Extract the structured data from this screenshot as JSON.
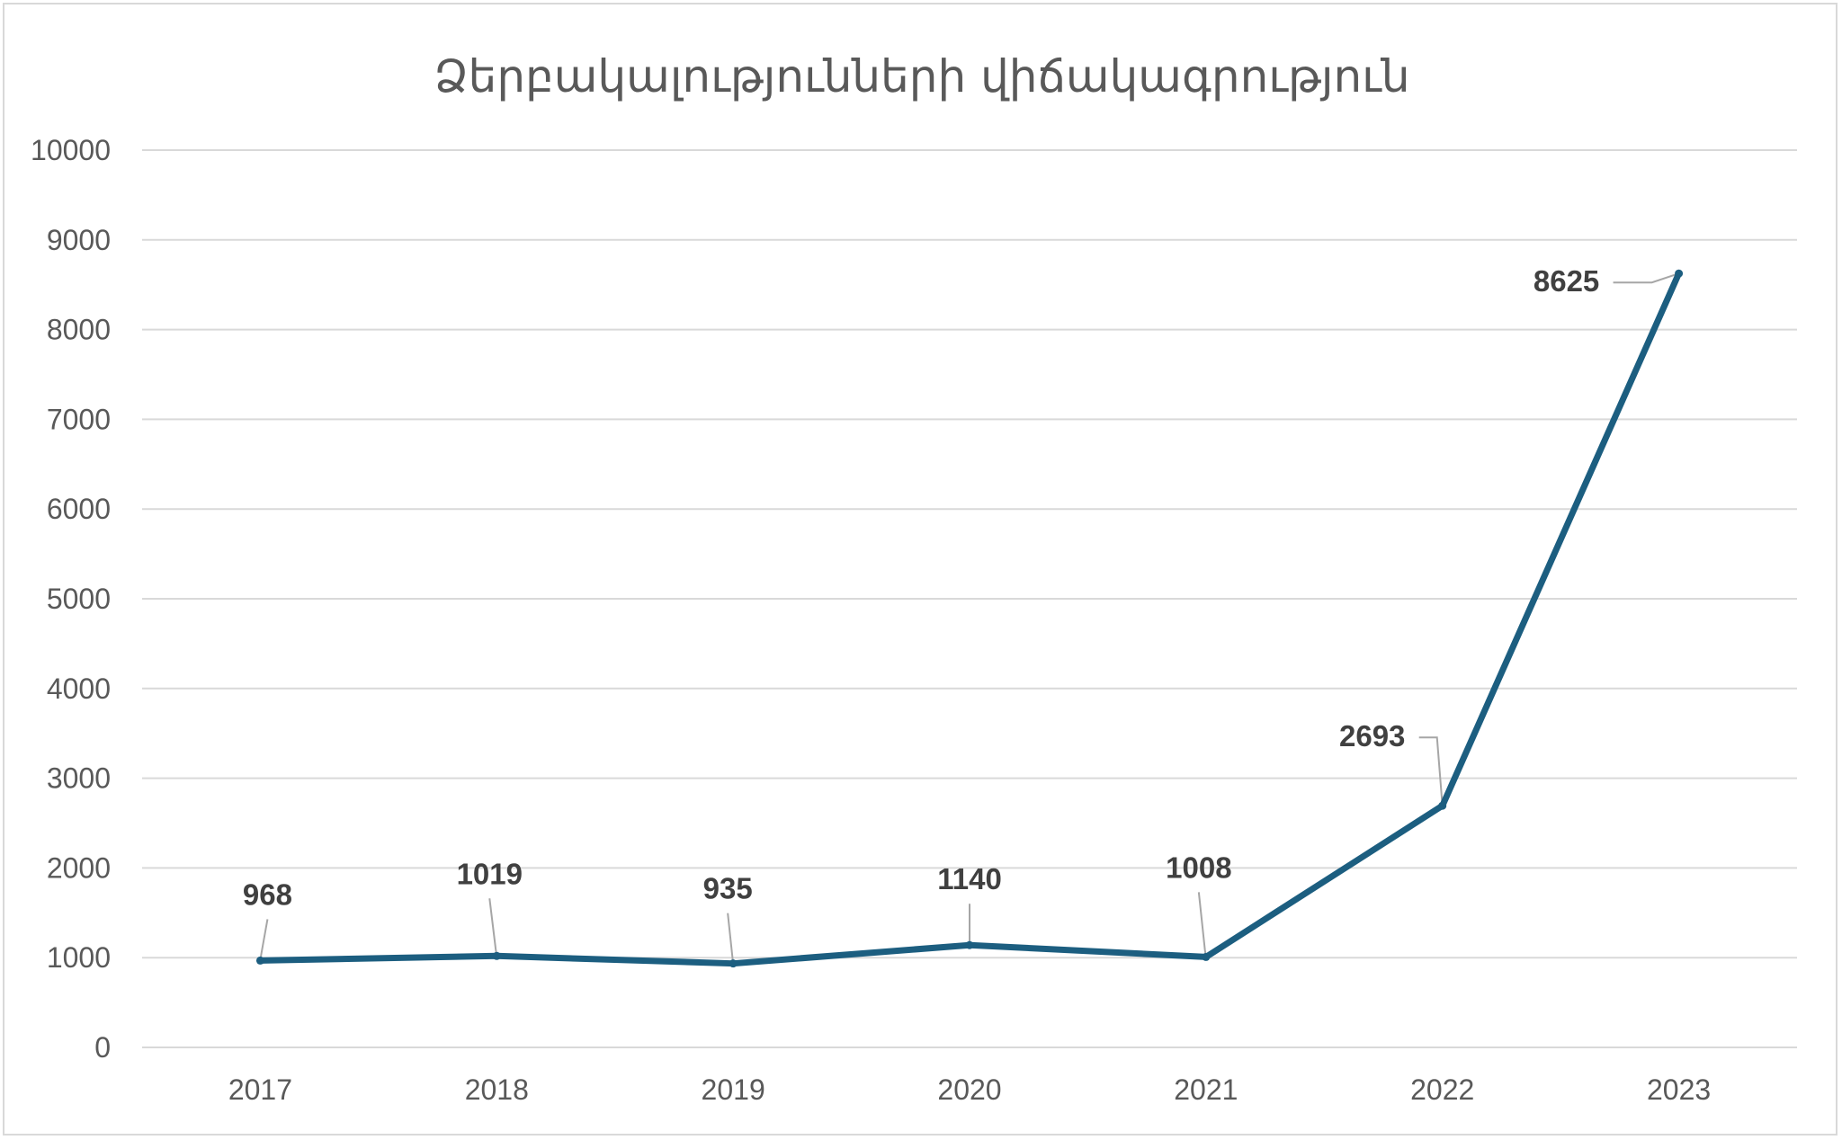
{
  "chart_data": {
    "type": "line",
    "title": "Ձերբակալությունների վիճակագրություն",
    "xlabel": "",
    "ylabel": "",
    "categories": [
      "2017",
      "2018",
      "2019",
      "2020",
      "2021",
      "2022",
      "2023"
    ],
    "series": [
      {
        "values": [
          968,
          1019,
          935,
          1140,
          1008,
          2693,
          8625
        ],
        "color": "#1c5e80"
      }
    ],
    "data_labels": [
      "968",
      "1019",
      "935",
      "1140",
      "1008",
      "2693",
      "8625"
    ],
    "ylim": [
      0,
      10000
    ],
    "yticks": [
      "0",
      "1000",
      "2000",
      "3000",
      "4000",
      "5000",
      "6000",
      "7000",
      "8000",
      "9000",
      "10000"
    ],
    "grid": true,
    "legend": "none"
  }
}
